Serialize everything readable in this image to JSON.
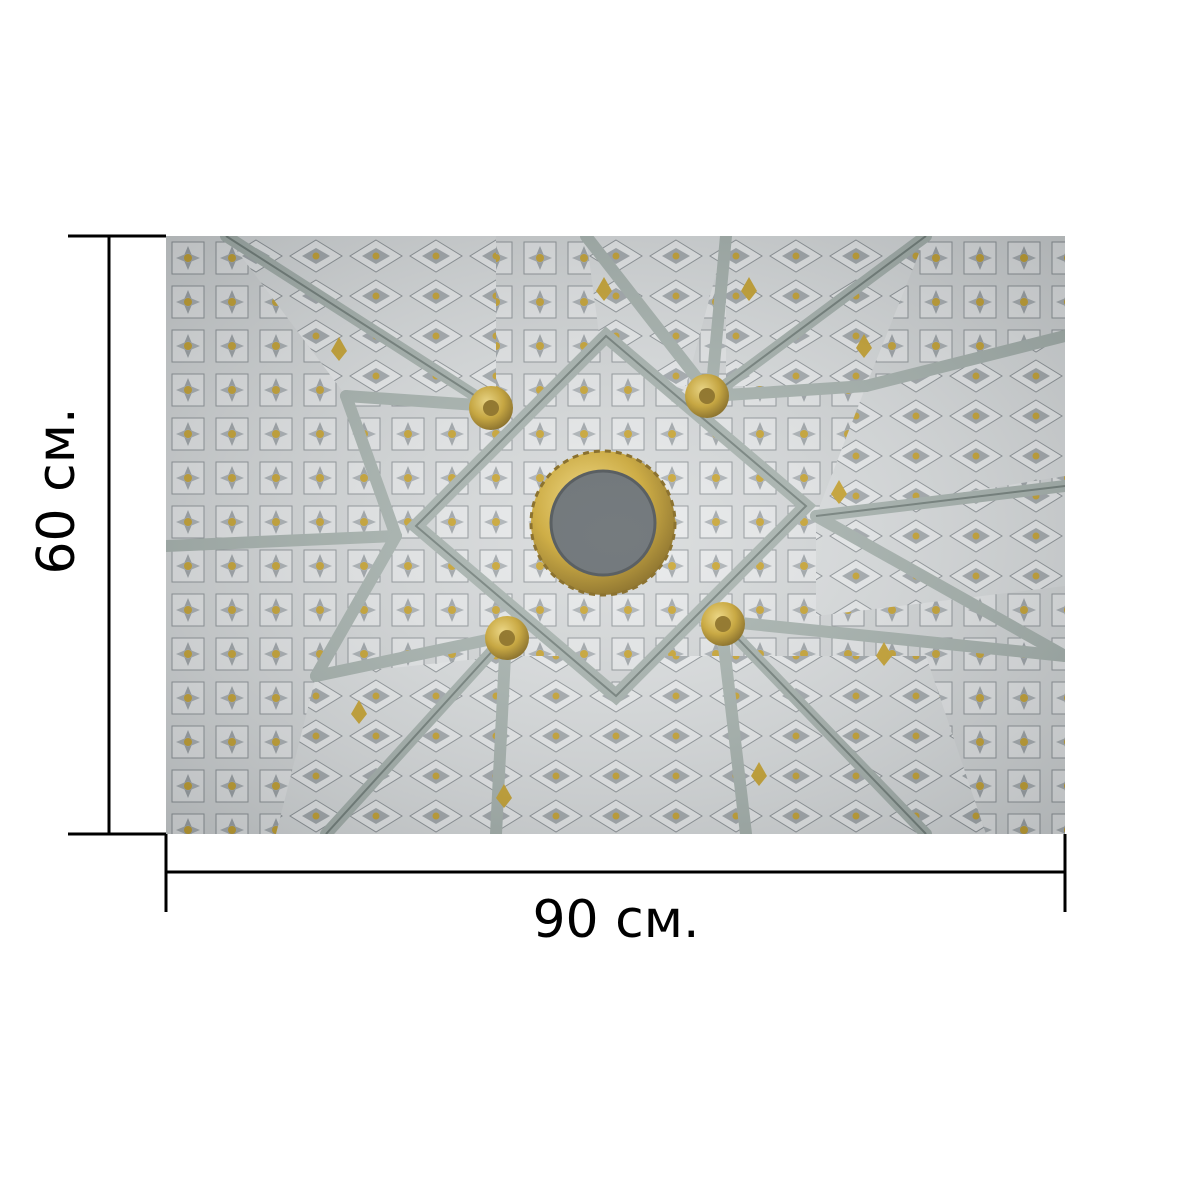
{
  "dimensions": {
    "width_label": "90 см.",
    "height_label": "60 см."
  },
  "artwork": {
    "subject": "photo-of-ornate-vaulted-ceiling",
    "colors": {
      "plaster": "#d9dcdd",
      "rib": "#a6b2ad",
      "rib_dark": "#6f7c77",
      "gold": "#c9a227",
      "gold_dark": "#8a6a12",
      "medallion": "#5d6468",
      "ornament": "#8e9498"
    }
  },
  "colors": {
    "line": "#000000",
    "background": "#ffffff"
  }
}
